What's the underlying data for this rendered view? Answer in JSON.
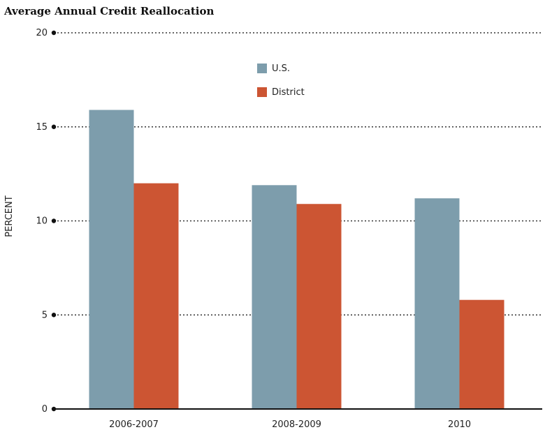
{
  "chart_data": {
    "type": "bar",
    "title": "Average Annual Credit Reallocation",
    "xlabel": "",
    "ylabel": "PERCENT",
    "ylim": [
      0,
      20
    ],
    "yticks": [
      0,
      5,
      10,
      15,
      20
    ],
    "grid": true,
    "legend_position": "top-center",
    "categories": [
      "2006-2007",
      "2008-2009",
      "2010"
    ],
    "series": [
      {
        "name": "U.S.",
        "color": "#7d9dac",
        "values": [
          15.9,
          11.9,
          11.2
        ]
      },
      {
        "name": "District",
        "color": "#cc5533",
        "values": [
          12.0,
          10.9,
          5.8
        ]
      }
    ]
  }
}
